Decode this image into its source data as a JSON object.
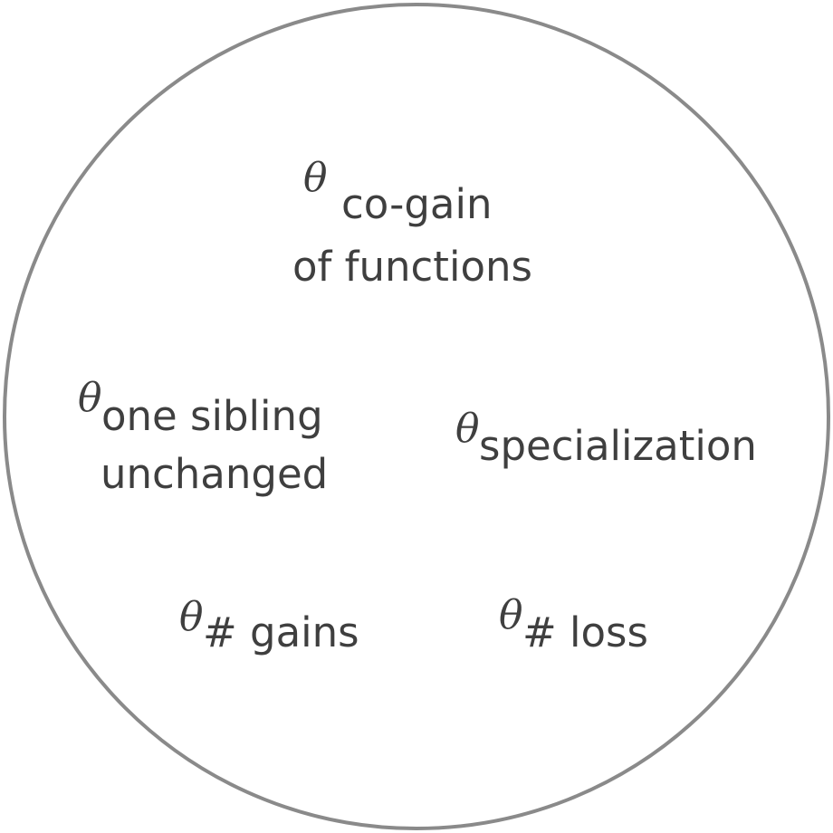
{
  "diagram": {
    "theta_symbol": "θ",
    "nodes": [
      {
        "id": "cogain",
        "subscript_line1": "co-gain",
        "subscript_line2": "of functions"
      },
      {
        "id": "one-sibling",
        "subscript_line1": "one sibling",
        "subscript_line2": "unchanged"
      },
      {
        "id": "specialization",
        "subscript_line1": "specialization"
      },
      {
        "id": "gains",
        "subscript_line1": "# gains"
      },
      {
        "id": "loss",
        "subscript_line1": "# loss"
      }
    ]
  }
}
